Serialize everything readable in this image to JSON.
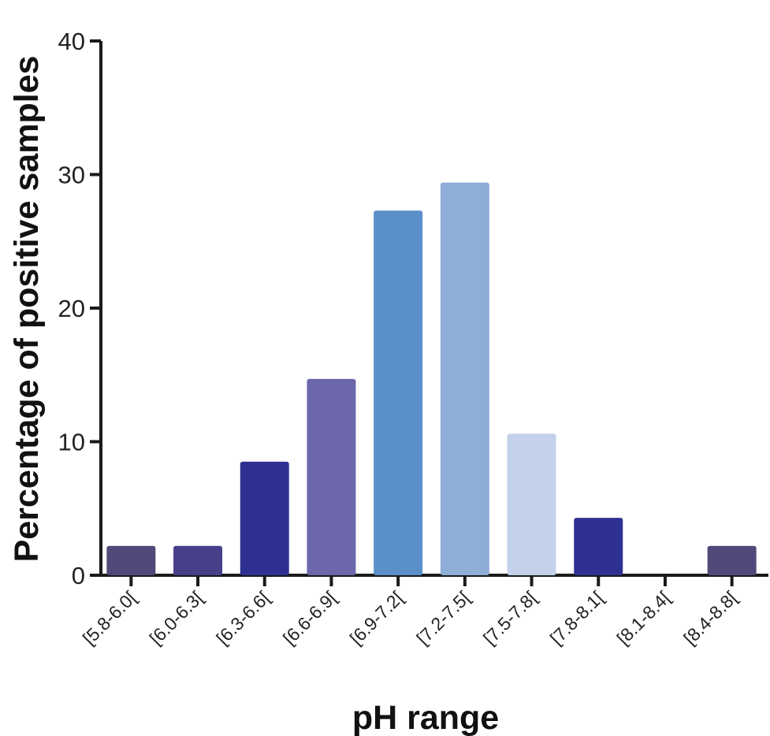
{
  "chart_data": {
    "type": "bar",
    "title": "",
    "xlabel": "pH range",
    "ylabel": "Percentage of positive samples",
    "categories": [
      "[5.8-6.0[",
      "[6.0-6.3[",
      "[6.3-6.6[",
      "[6.6-6.9[",
      "[6.9-7.2[",
      "[7.2-7.5[",
      "[7.5-7.8[",
      "[7.8-8.1[",
      "[8.1-8.4[",
      "[8.4-8.8["
    ],
    "values": [
      2.2,
      2.2,
      8.5,
      14.7,
      27.3,
      29.4,
      10.6,
      4.3,
      0,
      2.2
    ],
    "colors": [
      "#4f4a7a",
      "#463f8a",
      "#2e3192",
      "#6d67ab",
      "#5b8fc9",
      "#8eadd7",
      "#c3d1ea",
      "#2e3192",
      "#2e3192",
      "#4f4a7a"
    ],
    "ylim": [
      0,
      40
    ],
    "yticks": [
      0,
      10,
      20,
      30,
      40
    ],
    "grid": false,
    "legend": "none"
  }
}
